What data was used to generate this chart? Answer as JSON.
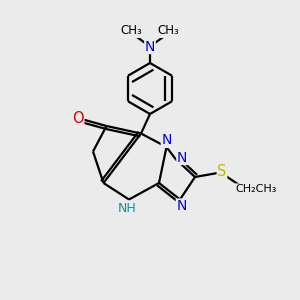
{
  "bg_color": "#ebebeb",
  "atom_colors": {
    "C": "#000000",
    "N": "#0000ee",
    "O": "#dd0000",
    "S": "#bbbb00",
    "H": "#009999"
  },
  "bond_color": "#000000",
  "bond_width": 1.6,
  "figsize": [
    3.0,
    3.0
  ],
  "dpi": 100,
  "xlim": [
    0,
    10
  ],
  "ylim": [
    0,
    10
  ]
}
